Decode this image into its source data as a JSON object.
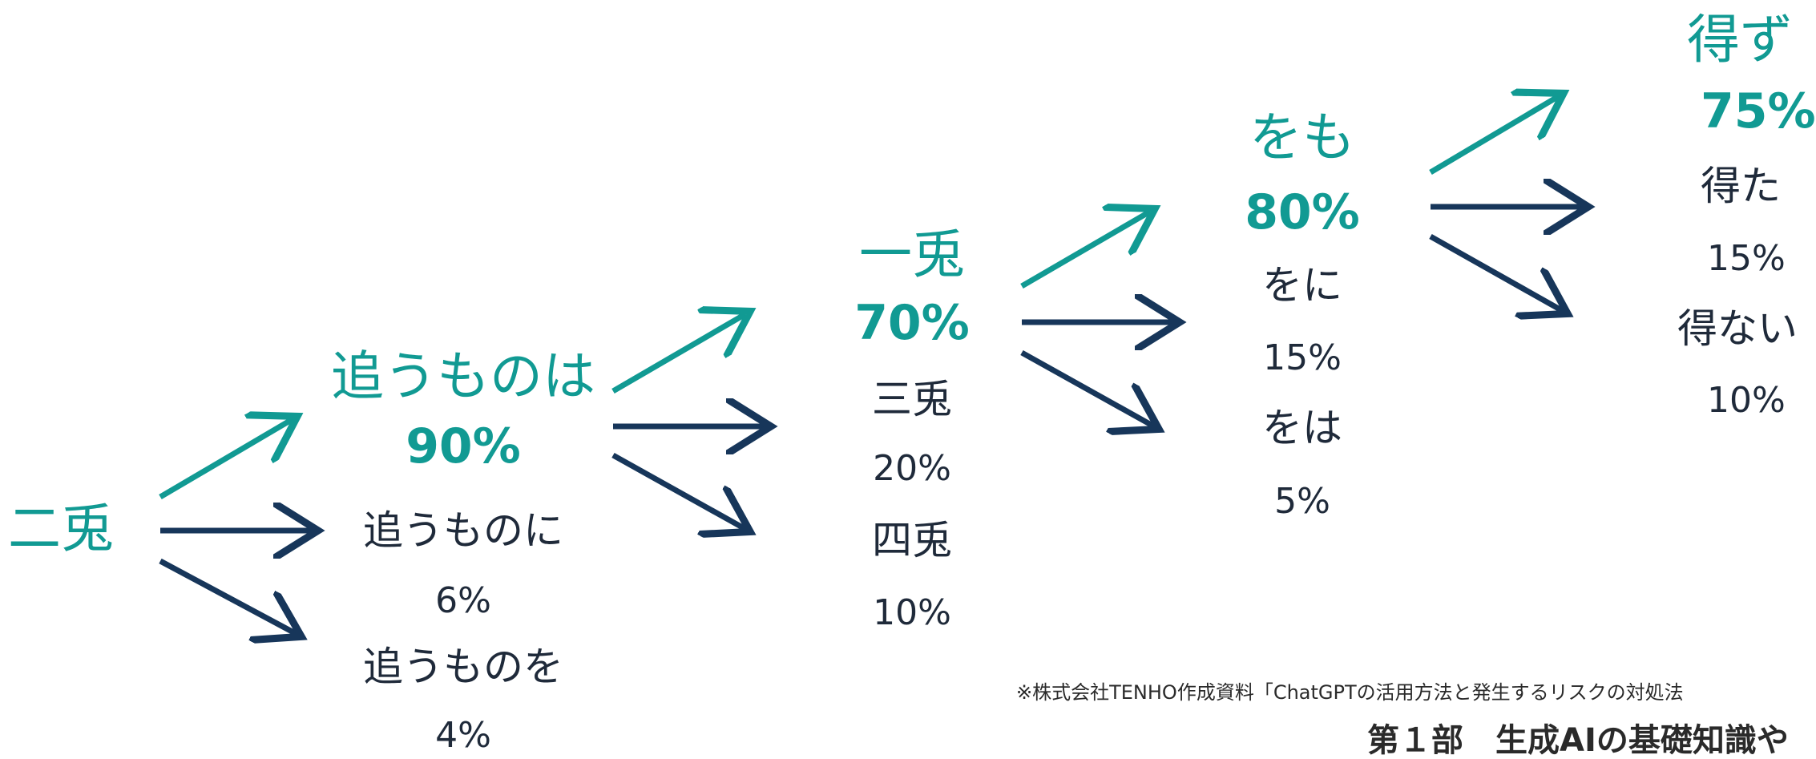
{
  "colors": {
    "highlight": "#119a93",
    "dark": "#17365a",
    "text": "#1f2a3a"
  },
  "start": {
    "word": "二兎"
  },
  "stages": [
    {
      "top": {
        "word": "追うものは",
        "pct": "90%"
      },
      "alternatives": [
        {
          "word": "追うものに",
          "pct": "6%"
        },
        {
          "word": "追うものを",
          "pct": "4%"
        }
      ]
    },
    {
      "top": {
        "word": "一兎",
        "pct": "70%"
      },
      "alternatives": [
        {
          "word": "三兎",
          "pct": "20%"
        },
        {
          "word": "四兎",
          "pct": "10%"
        }
      ]
    },
    {
      "top": {
        "word": "をも",
        "pct": "80%"
      },
      "alternatives": [
        {
          "word": "をに",
          "pct": "15%"
        },
        {
          "word": "をは",
          "pct": "5%"
        }
      ]
    },
    {
      "top": {
        "word": "得ず",
        "pct": "75%"
      },
      "alternatives": [
        {
          "word": "得た",
          "pct": "15%"
        },
        {
          "word": "得ない",
          "pct": "10%"
        }
      ]
    }
  ],
  "source_note": "※株式会社TENHO作成資料「ChatGPTの活用方法と発生するリスクの対処法",
  "footer_title": "第１部　生成AIの基礎知識や"
}
